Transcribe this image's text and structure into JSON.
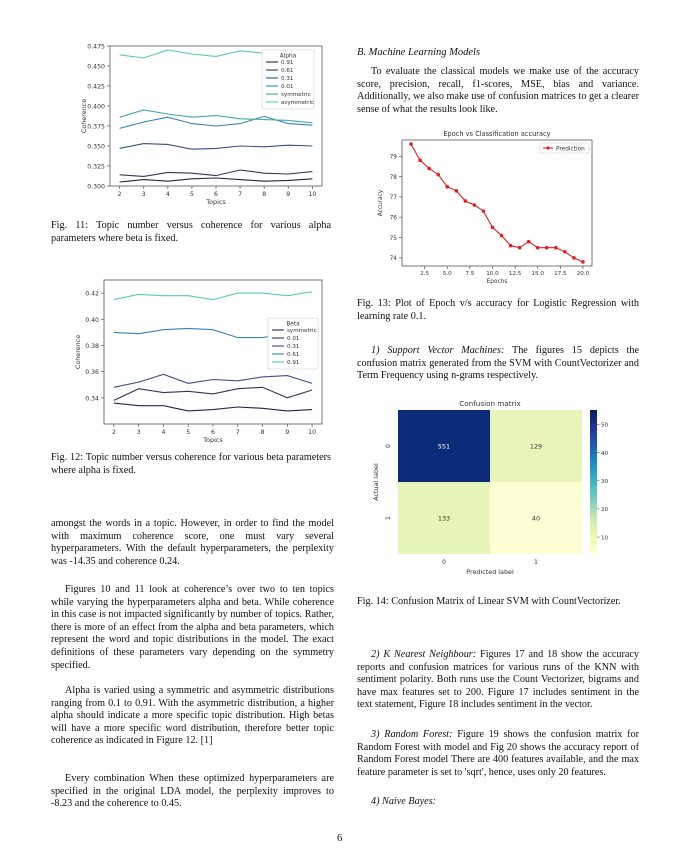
{
  "fig11": {
    "caption_label": "Fig. 11:",
    "caption": "Topic number versus coherence for various alpha parameters where beta is fixed.",
    "chart_data": {
      "type": "line",
      "xlabel": "Topics",
      "ylabel": "Coherence",
      "ylim": [
        0.3,
        0.475
      ],
      "yticks": [
        "0.300",
        "0.325",
        "0.350",
        "0.375",
        "0.400",
        "0.425",
        "0.450",
        "0.475"
      ],
      "x": [
        2,
        3,
        4,
        5,
        6,
        7,
        8,
        9,
        10
      ],
      "xticks": [
        "2",
        "3",
        "4",
        "5",
        "6",
        "7",
        "8",
        "9",
        "10"
      ],
      "legend_title": "Alpha",
      "legend_position": "upper-right",
      "series": [
        {
          "name": "0.91",
          "color": "#2c1f4d",
          "values": [
            0.305,
            0.308,
            0.306,
            0.309,
            0.31,
            0.308,
            0.306,
            0.307,
            0.309
          ]
        },
        {
          "name": "0.61",
          "color": "#35355f",
          "values": [
            0.314,
            0.312,
            0.317,
            0.316,
            0.313,
            0.32,
            0.316,
            0.315,
            0.318
          ]
        },
        {
          "name": "0.31",
          "color": "#3b4f8a",
          "values": [
            0.347,
            0.353,
            0.352,
            0.346,
            0.347,
            0.35,
            0.349,
            0.351,
            0.35
          ]
        },
        {
          "name": "0.01",
          "color": "#3a82b7",
          "values": [
            0.372,
            0.38,
            0.386,
            0.378,
            0.375,
            0.378,
            0.387,
            0.378,
            0.376
          ]
        },
        {
          "name": "symmetric",
          "color": "#44a7b3",
          "values": [
            0.386,
            0.395,
            0.39,
            0.386,
            0.388,
            0.384,
            0.383,
            0.382,
            0.379
          ]
        },
        {
          "name": "asymmetric",
          "color": "#59c9b5",
          "values": [
            0.464,
            0.46,
            0.47,
            0.465,
            0.462,
            0.469,
            0.466,
            0.467,
            0.466
          ]
        }
      ]
    }
  },
  "fig12": {
    "caption_label": "Fig. 12:",
    "caption": "Topic number versus coherence for various beta parameters where alpha is fixed.",
    "chart_data": {
      "type": "line",
      "xlabel": "Topics",
      "ylabel": "Coherence",
      "ylim": [
        0.32,
        0.43
      ],
      "yticks": [
        "0.34",
        "0.36",
        "0.38",
        "0.40",
        "0.42"
      ],
      "ytick_values": [
        0.34,
        0.36,
        0.38,
        0.4,
        0.42
      ],
      "x": [
        2,
        3,
        4,
        5,
        6,
        7,
        8,
        9,
        10
      ],
      "xticks": [
        "2",
        "3",
        "4",
        "5",
        "6",
        "7",
        "8",
        "9",
        "10"
      ],
      "legend_title": "Beta",
      "legend_position": "center-right",
      "series": [
        {
          "name": "symmetric",
          "color": "#2c1f4d",
          "values": [
            0.336,
            0.334,
            0.334,
            0.33,
            0.331,
            0.333,
            0.332,
            0.33,
            0.331
          ]
        },
        {
          "name": "0.01",
          "color": "#35355f",
          "values": [
            0.338,
            0.347,
            0.344,
            0.345,
            0.343,
            0.347,
            0.348,
            0.34,
            0.346
          ]
        },
        {
          "name": "0.31",
          "color": "#3b4f8a",
          "values": [
            0.348,
            0.352,
            0.358,
            0.351,
            0.354,
            0.353,
            0.356,
            0.357,
            0.351
          ]
        },
        {
          "name": "0.61",
          "color": "#3a82b7",
          "values": [
            0.39,
            0.389,
            0.392,
            0.393,
            0.392,
            0.386,
            0.386,
            0.389,
            0.387
          ]
        },
        {
          "name": "0.91",
          "color": "#59c9b5",
          "values": [
            0.415,
            0.419,
            0.418,
            0.418,
            0.415,
            0.42,
            0.42,
            0.418,
            0.421
          ]
        }
      ]
    }
  },
  "left_text": {
    "p1": "amongst the words in a topic. However, in order to find the model with maximum coherence score, one must vary several hyperparameters. With the default hyperparameters, the perplexity was -14.35 and coherence 0.24.",
    "p2": "Figures 10 and 11 look at coherence’s over two to ten topics while varying the hyperparameters alpha and beta. While coherence in this case is not impacted significantly by number of topics. Rather, there is more of an effect from the alpha and beta parameters, which represent the word and topic distributions in the model. The exact definitions of these parameters vary depending on the symmetry specified.",
    "p3": "Alpha is varied using a symmetric and asymmetric distributions ranging from 0.1 to 0.91. With the asymmetric distribution, a higher alpha should indicate a more specific topic distribution. High betas will have a more specific word distribution, therefore better topic coherence as indicated in Figure 12. [1]",
    "p4": "Every combination When these optimized hyperparameters are specified in the original LDA model, the perplexity improves to -8.23 and the coherence to 0.45."
  },
  "right_text": {
    "section_heading": "B.  Machine Learning Models",
    "p1": "To evaluate the classical models we make use of the accuracy score, precision, recall, f1-scores, MSE, bias and variance. Additionally, we also make use of confusion matrices to get a clearer sense of what the results look like.",
    "svm_heading": "1) Support Vector Machines:",
    "svm_body": "The figures 15 depicts the confusion matrix generated from the SVM with CountVectorizer and Term Frequency using n-grams respectively.",
    "knn_heading": "2) K Nearest Neighbour:",
    "knn_body": "Figures 17 and 18 show the accuracy reports and confusion matrices for various runs of the KNN with sentiment polarity. Both runs use the Count Vectorizer, bigrams and have max features set to 200. Figure 17 includes sentiment in the text statement, Figure 18 includes sentiment in the vector.",
    "rf_heading": "3) Random Forest:",
    "rf_body": "Figure 19 shows the confusion matrix for Random Forest with model and Fig 20 shows the accuracy report of Random Forest model There are 400 features available, and the max feature parameter is set to 'sqrt', hence, uses only 20 features.",
    "nb_heading": "4) Naive Bayes:"
  },
  "fig13": {
    "caption_label": "Fig. 13:",
    "caption": "Plot of Epoch v/s accuracy for Logistic Regression with learning rate 0.1.",
    "chart_data": {
      "type": "line",
      "title": "Epoch vs Classification accuracy",
      "xlabel": "Epochs",
      "ylabel": "Accuracy",
      "xlim": [
        0,
        21
      ],
      "ylim": [
        73.6,
        79.8
      ],
      "xticks": [
        "2.5",
        "5.0",
        "7.5",
        "10.0",
        "12.5",
        "15.0",
        "17.5",
        "20.0"
      ],
      "xtick_values": [
        2.5,
        5.0,
        7.5,
        10.0,
        12.5,
        15.0,
        17.5,
        20.0
      ],
      "yticks": [
        "74",
        "75",
        "76",
        "77",
        "78",
        "79"
      ],
      "ytick_values": [
        74,
        75,
        76,
        77,
        78,
        79
      ],
      "legend_position": "top-right",
      "series": [
        {
          "name": "Prediction",
          "color": "#e02020",
          "x": [
            1,
            2,
            3,
            4,
            5,
            6,
            7,
            8,
            9,
            10,
            11,
            12,
            13,
            14,
            15,
            16,
            17,
            18,
            19,
            20
          ],
          "values": [
            79.6,
            78.8,
            78.4,
            78.1,
            77.5,
            77.3,
            76.8,
            76.6,
            76.3,
            75.5,
            75.1,
            74.6,
            74.5,
            74.8,
            74.5,
            74.5,
            74.5,
            74.3,
            74.0,
            73.8
          ]
        }
      ]
    }
  },
  "fig14": {
    "caption_label": "Fig. 14:",
    "caption": "Confusion Matrix of Linear SVM with CountVectorizer.",
    "chart_data": {
      "type": "heatmap",
      "title": "Confusion matrix",
      "xlabel": "Predicted label",
      "ylabel": "Actual label",
      "row_labels": [
        "0",
        "1"
      ],
      "col_labels": [
        "0",
        "1"
      ],
      "cells": [
        [
          "551",
          "129"
        ],
        [
          "133",
          "40"
        ]
      ],
      "cell_colors": [
        [
          "#0c2c7a",
          "#e8f5ba"
        ],
        [
          "#e5f4b7",
          "#fdfed4"
        ]
      ],
      "cell_text_colors": [
        [
          "#ffffff",
          "#333333"
        ],
        [
          "#333333",
          "#333333"
        ]
      ],
      "colorbar_ticks": [
        "100",
        "200",
        "300",
        "400",
        "500"
      ],
      "colorbar_tick_values": [
        100,
        200,
        300,
        400,
        500
      ],
      "colorbar_range": [
        40,
        551
      ],
      "colorbar_colors": [
        "#ffffd9",
        "#edf8b1",
        "#c7e9b4",
        "#7fcdbb",
        "#41b6c4",
        "#1d91c0",
        "#225ea8",
        "#253494",
        "#081d58"
      ]
    }
  },
  "page_number": "6"
}
